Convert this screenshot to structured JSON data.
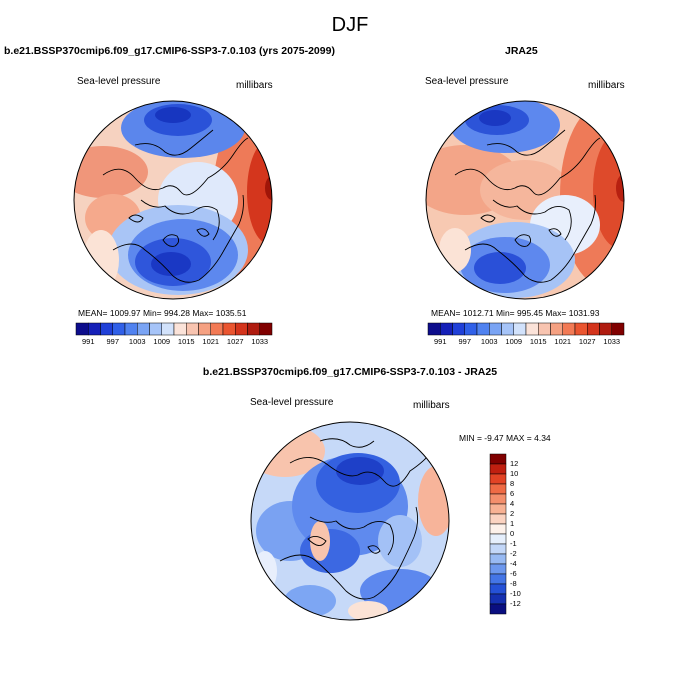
{
  "figure": {
    "season": "DJF",
    "difference_title": "b.e21.BSSP370cmip6.f09_g17.CMIP6-SSP3-7.0.103 - JRA25"
  },
  "panels": [
    {
      "title": "b.e21.BSSP370cmip6.f09_g17.CMIP6-SSP3-7.0.103 (yrs 2075-2099)",
      "left_label": "Sea-level pressure",
      "right_label": "millibars",
      "stats": "MEAN= 1009.97  Min= 994.28  Max= 1035.51"
    },
    {
      "title": "JRA25",
      "left_label": "Sea-level pressure",
      "right_label": "millibars",
      "stats": "MEAN= 1012.71  Min= 995.45  Max= 1031.93"
    },
    {
      "title": "b.e21.BSSP370cmip6.f09_g17.CMIP6-SSP3-7.0.103 - JRA25",
      "left_label": "Sea-level pressure",
      "right_label": "millibars",
      "stats": "MIN =  -9.47 MAX =   4.34"
    }
  ],
  "colorbar_main": {
    "tick_labels": [
      "991",
      "997",
      "1003",
      "1009",
      "1015",
      "1021",
      "1027",
      "1033"
    ],
    "colors": [
      "#0d0d8c",
      "#1520b8",
      "#2040d8",
      "#3060e8",
      "#5082f0",
      "#7aa4f4",
      "#a6c4f8",
      "#d2e2fb",
      "#fbe3d9",
      "#f8c4b0",
      "#f5a182",
      "#f27a55",
      "#ea5530",
      "#d4341c",
      "#b01c10",
      "#800000"
    ]
  },
  "colorbar_diff": {
    "tick_labels": [
      "12",
      "10",
      "8",
      "6",
      "4",
      "2",
      "1",
      "0",
      "-1",
      "-2",
      "-4",
      "-6",
      "-8",
      "-10",
      "-12"
    ],
    "colors": [
      "#800000",
      "#c01f10",
      "#e24325",
      "#ef6b45",
      "#f48f6c",
      "#f8b294",
      "#fbd3c1",
      "#fdf1ea",
      "#e6effc",
      "#c3d7f8",
      "#98baf3",
      "#6d98ee",
      "#4475e6",
      "#2551d6",
      "#1530b0",
      "#0a0f80"
    ]
  }
}
